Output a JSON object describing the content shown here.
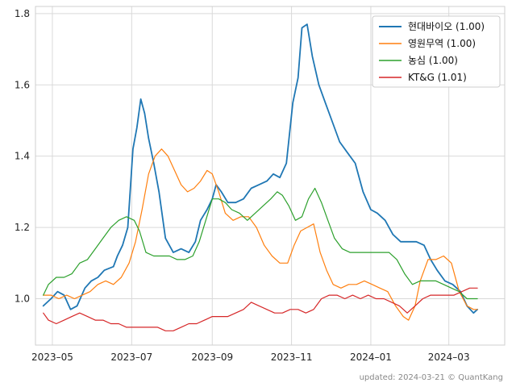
{
  "chart_data": {
    "type": "line",
    "title": "",
    "xlabel": "",
    "ylabel": "",
    "ylim": [
      0.87,
      1.82
    ],
    "xlim": [
      "2023-04-18",
      "2024-04-13"
    ],
    "grid": true,
    "legend_position": "top-right",
    "y_ticks": [
      1.0,
      1.2,
      1.4,
      1.6,
      1.8
    ],
    "y_tick_labels": [
      "1.0",
      "1.2",
      "1.4",
      "1.6",
      "1.8"
    ],
    "x_ticks": [
      "2023-05-01",
      "2023-07-01",
      "2023-09-01",
      "2023-11-01",
      "2024-01-01",
      "2024-03-01"
    ],
    "x_tick_labels": [
      "2023–05",
      "2023–07",
      "2023–09",
      "2023–11",
      "2024–01",
      "2024–03"
    ],
    "footer": "updated: 2024-03-21 © QuantKang",
    "series": [
      {
        "name": "현대바이오",
        "legend_label": "현대바이오 (1.00)",
        "color": "#1f77b4",
        "width": 1.8,
        "points": [
          [
            "2023-04-24",
            0.98
          ],
          [
            "2023-04-30",
            1.0
          ],
          [
            "2023-05-05",
            1.02
          ],
          [
            "2023-05-10",
            1.01
          ],
          [
            "2023-05-15",
            0.97
          ],
          [
            "2023-05-20",
            0.98
          ],
          [
            "2023-05-26",
            1.03
          ],
          [
            "2023-05-31",
            1.05
          ],
          [
            "2023-06-05",
            1.06
          ],
          [
            "2023-06-10",
            1.08
          ],
          [
            "2023-06-17",
            1.09
          ],
          [
            "2023-06-20",
            1.12
          ],
          [
            "2023-06-24",
            1.15
          ],
          [
            "2023-06-28",
            1.2
          ],
          [
            "2023-07-02",
            1.42
          ],
          [
            "2023-07-05",
            1.48
          ],
          [
            "2023-07-08",
            1.56
          ],
          [
            "2023-07-11",
            1.52
          ],
          [
            "2023-07-14",
            1.45
          ],
          [
            "2023-07-18",
            1.38
          ],
          [
            "2023-07-22",
            1.3
          ],
          [
            "2023-07-27",
            1.17
          ],
          [
            "2023-08-02",
            1.13
          ],
          [
            "2023-08-08",
            1.14
          ],
          [
            "2023-08-14",
            1.13
          ],
          [
            "2023-08-19",
            1.16
          ],
          [
            "2023-08-23",
            1.22
          ],
          [
            "2023-08-28",
            1.25
          ],
          [
            "2023-09-01",
            1.28
          ],
          [
            "2023-09-04",
            1.32
          ],
          [
            "2023-09-08",
            1.3
          ],
          [
            "2023-09-13",
            1.27
          ],
          [
            "2023-09-19",
            1.27
          ],
          [
            "2023-09-25",
            1.28
          ],
          [
            "2023-10-01",
            1.31
          ],
          [
            "2023-10-07",
            1.32
          ],
          [
            "2023-10-13",
            1.33
          ],
          [
            "2023-10-18",
            1.35
          ],
          [
            "2023-10-23",
            1.34
          ],
          [
            "2023-10-28",
            1.38
          ],
          [
            "2023-11-02",
            1.55
          ],
          [
            "2023-11-06",
            1.62
          ],
          [
            "2023-11-09",
            1.76
          ],
          [
            "2023-11-13",
            1.77
          ],
          [
            "2023-11-17",
            1.68
          ],
          [
            "2023-11-22",
            1.6
          ],
          [
            "2023-11-27",
            1.55
          ],
          [
            "2023-12-02",
            1.5
          ],
          [
            "2023-12-08",
            1.44
          ],
          [
            "2023-12-14",
            1.41
          ],
          [
            "2023-12-20",
            1.38
          ],
          [
            "2023-12-26",
            1.3
          ],
          [
            "2024-01-01",
            1.25
          ],
          [
            "2024-01-06",
            1.24
          ],
          [
            "2024-01-12",
            1.22
          ],
          [
            "2024-01-18",
            1.18
          ],
          [
            "2024-01-24",
            1.16
          ],
          [
            "2024-01-30",
            1.16
          ],
          [
            "2024-02-05",
            1.16
          ],
          [
            "2024-02-11",
            1.15
          ],
          [
            "2024-02-16",
            1.11
          ],
          [
            "2024-02-21",
            1.08
          ],
          [
            "2024-02-27",
            1.05
          ],
          [
            "2024-03-04",
            1.04
          ],
          [
            "2024-03-10",
            1.02
          ],
          [
            "2024-03-15",
            0.98
          ],
          [
            "2024-03-20",
            0.96
          ],
          [
            "2024-03-23",
            0.97
          ]
        ]
      },
      {
        "name": "영원무역",
        "legend_label": "영원무역 (1.00)",
        "color": "#ff7f0e",
        "width": 1.2,
        "points": [
          [
            "2023-04-24",
            1.01
          ],
          [
            "2023-04-30",
            1.01
          ],
          [
            "2023-05-06",
            1.0
          ],
          [
            "2023-05-12",
            1.01
          ],
          [
            "2023-05-18",
            1.0
          ],
          [
            "2023-05-24",
            1.01
          ],
          [
            "2023-05-30",
            1.02
          ],
          [
            "2023-06-05",
            1.04
          ],
          [
            "2023-06-11",
            1.05
          ],
          [
            "2023-06-17",
            1.04
          ],
          [
            "2023-06-23",
            1.06
          ],
          [
            "2023-06-29",
            1.1
          ],
          [
            "2023-07-04",
            1.16
          ],
          [
            "2023-07-09",
            1.25
          ],
          [
            "2023-07-14",
            1.35
          ],
          [
            "2023-07-19",
            1.4
          ],
          [
            "2023-07-24",
            1.42
          ],
          [
            "2023-07-29",
            1.4
          ],
          [
            "2023-08-03",
            1.36
          ],
          [
            "2023-08-08",
            1.32
          ],
          [
            "2023-08-13",
            1.3
          ],
          [
            "2023-08-18",
            1.31
          ],
          [
            "2023-08-23",
            1.33
          ],
          [
            "2023-08-28",
            1.36
          ],
          [
            "2023-09-01",
            1.35
          ],
          [
            "2023-09-06",
            1.3
          ],
          [
            "2023-09-11",
            1.24
          ],
          [
            "2023-09-17",
            1.22
          ],
          [
            "2023-09-23",
            1.23
          ],
          [
            "2023-09-29",
            1.23
          ],
          [
            "2023-10-05",
            1.2
          ],
          [
            "2023-10-11",
            1.15
          ],
          [
            "2023-10-17",
            1.12
          ],
          [
            "2023-10-23",
            1.1
          ],
          [
            "2023-10-29",
            1.1
          ],
          [
            "2023-11-03",
            1.15
          ],
          [
            "2023-11-08",
            1.19
          ],
          [
            "2023-11-13",
            1.2
          ],
          [
            "2023-11-18",
            1.21
          ],
          [
            "2023-11-23",
            1.13
          ],
          [
            "2023-11-28",
            1.08
          ],
          [
            "2023-12-03",
            1.04
          ],
          [
            "2023-12-09",
            1.03
          ],
          [
            "2023-12-15",
            1.04
          ],
          [
            "2023-12-21",
            1.04
          ],
          [
            "2023-12-27",
            1.05
          ],
          [
            "2024-01-02",
            1.04
          ],
          [
            "2024-01-08",
            1.03
          ],
          [
            "2024-01-14",
            1.02
          ],
          [
            "2024-01-20",
            0.98
          ],
          [
            "2024-01-26",
            0.95
          ],
          [
            "2024-01-30",
            0.94
          ],
          [
            "2024-02-04",
            0.98
          ],
          [
            "2024-02-08",
            1.05
          ],
          [
            "2024-02-14",
            1.11
          ],
          [
            "2024-02-20",
            1.11
          ],
          [
            "2024-02-26",
            1.12
          ],
          [
            "2024-03-03",
            1.1
          ],
          [
            "2024-03-09",
            1.02
          ],
          [
            "2024-03-15",
            0.98
          ],
          [
            "2024-03-20",
            0.97
          ],
          [
            "2024-03-23",
            0.97
          ]
        ]
      },
      {
        "name": "농심",
        "legend_label": "농심 (1.00)",
        "color": "#2ca02c",
        "width": 1.2,
        "points": [
          [
            "2023-04-24",
            1.01
          ],
          [
            "2023-04-28",
            1.04
          ],
          [
            "2023-05-04",
            1.06
          ],
          [
            "2023-05-10",
            1.06
          ],
          [
            "2023-05-16",
            1.07
          ],
          [
            "2023-05-22",
            1.1
          ],
          [
            "2023-05-28",
            1.11
          ],
          [
            "2023-06-03",
            1.14
          ],
          [
            "2023-06-09",
            1.17
          ],
          [
            "2023-06-15",
            1.2
          ],
          [
            "2023-06-21",
            1.22
          ],
          [
            "2023-06-27",
            1.23
          ],
          [
            "2023-07-03",
            1.22
          ],
          [
            "2023-07-07",
            1.19
          ],
          [
            "2023-07-12",
            1.13
          ],
          [
            "2023-07-18",
            1.12
          ],
          [
            "2023-07-24",
            1.12
          ],
          [
            "2023-07-30",
            1.12
          ],
          [
            "2023-08-05",
            1.11
          ],
          [
            "2023-08-11",
            1.11
          ],
          [
            "2023-08-17",
            1.12
          ],
          [
            "2023-08-22",
            1.16
          ],
          [
            "2023-08-27",
            1.22
          ],
          [
            "2023-09-01",
            1.28
          ],
          [
            "2023-09-06",
            1.28
          ],
          [
            "2023-09-11",
            1.27
          ],
          [
            "2023-09-16",
            1.25
          ],
          [
            "2023-09-22",
            1.24
          ],
          [
            "2023-09-28",
            1.22
          ],
          [
            "2023-10-04",
            1.24
          ],
          [
            "2023-10-10",
            1.26
          ],
          [
            "2023-10-16",
            1.28
          ],
          [
            "2023-10-21",
            1.3
          ],
          [
            "2023-10-25",
            1.29
          ],
          [
            "2023-10-30",
            1.26
          ],
          [
            "2023-11-04",
            1.22
          ],
          [
            "2023-11-09",
            1.23
          ],
          [
            "2023-11-14",
            1.28
          ],
          [
            "2023-11-19",
            1.31
          ],
          [
            "2023-11-24",
            1.27
          ],
          [
            "2023-11-29",
            1.22
          ],
          [
            "2023-12-04",
            1.17
          ],
          [
            "2023-12-10",
            1.14
          ],
          [
            "2023-12-16",
            1.13
          ],
          [
            "2023-12-22",
            1.13
          ],
          [
            "2023-12-28",
            1.13
          ],
          [
            "2024-01-03",
            1.13
          ],
          [
            "2024-01-09",
            1.13
          ],
          [
            "2024-01-15",
            1.13
          ],
          [
            "2024-01-21",
            1.11
          ],
          [
            "2024-01-27",
            1.07
          ],
          [
            "2024-02-02",
            1.04
          ],
          [
            "2024-02-08",
            1.05
          ],
          [
            "2024-02-14",
            1.05
          ],
          [
            "2024-02-20",
            1.05
          ],
          [
            "2024-02-26",
            1.04
          ],
          [
            "2024-03-03",
            1.03
          ],
          [
            "2024-03-09",
            1.02
          ],
          [
            "2024-03-15",
            1.0
          ],
          [
            "2024-03-20",
            1.0
          ],
          [
            "2024-03-23",
            1.0
          ]
        ]
      },
      {
        "name": "KT&G",
        "legend_label": "KT&G (1.01)",
        "color": "#d62728",
        "width": 1.2,
        "points": [
          [
            "2023-04-24",
            0.96
          ],
          [
            "2023-04-28",
            0.94
          ],
          [
            "2023-05-04",
            0.93
          ],
          [
            "2023-05-10",
            0.94
          ],
          [
            "2023-05-16",
            0.95
          ],
          [
            "2023-05-22",
            0.96
          ],
          [
            "2023-05-28",
            0.95
          ],
          [
            "2023-06-03",
            0.94
          ],
          [
            "2023-06-09",
            0.94
          ],
          [
            "2023-06-15",
            0.93
          ],
          [
            "2023-06-21",
            0.93
          ],
          [
            "2023-06-27",
            0.92
          ],
          [
            "2023-07-03",
            0.92
          ],
          [
            "2023-07-09",
            0.92
          ],
          [
            "2023-07-15",
            0.92
          ],
          [
            "2023-07-21",
            0.92
          ],
          [
            "2023-07-27",
            0.91
          ],
          [
            "2023-08-02",
            0.91
          ],
          [
            "2023-08-08",
            0.92
          ],
          [
            "2023-08-14",
            0.93
          ],
          [
            "2023-08-20",
            0.93
          ],
          [
            "2023-08-26",
            0.94
          ],
          [
            "2023-09-01",
            0.95
          ],
          [
            "2023-09-07",
            0.95
          ],
          [
            "2023-09-13",
            0.95
          ],
          [
            "2023-09-19",
            0.96
          ],
          [
            "2023-09-25",
            0.97
          ],
          [
            "2023-10-01",
            0.99
          ],
          [
            "2023-10-07",
            0.98
          ],
          [
            "2023-10-13",
            0.97
          ],
          [
            "2023-10-19",
            0.96
          ],
          [
            "2023-10-25",
            0.96
          ],
          [
            "2023-10-31",
            0.97
          ],
          [
            "2023-11-06",
            0.97
          ],
          [
            "2023-11-12",
            0.96
          ],
          [
            "2023-11-18",
            0.97
          ],
          [
            "2023-11-24",
            1.0
          ],
          [
            "2023-11-30",
            1.01
          ],
          [
            "2023-12-06",
            1.01
          ],
          [
            "2023-12-12",
            1.0
          ],
          [
            "2023-12-18",
            1.01
          ],
          [
            "2023-12-24",
            1.0
          ],
          [
            "2023-12-30",
            1.01
          ],
          [
            "2024-01-05",
            1.0
          ],
          [
            "2024-01-11",
            1.0
          ],
          [
            "2024-01-17",
            0.99
          ],
          [
            "2024-01-23",
            0.98
          ],
          [
            "2024-01-29",
            0.96
          ],
          [
            "2024-02-04",
            0.98
          ],
          [
            "2024-02-10",
            1.0
          ],
          [
            "2024-02-16",
            1.01
          ],
          [
            "2024-02-22",
            1.01
          ],
          [
            "2024-02-28",
            1.01
          ],
          [
            "2024-03-05",
            1.01
          ],
          [
            "2024-03-11",
            1.02
          ],
          [
            "2024-03-17",
            1.03
          ],
          [
            "2024-03-23",
            1.03
          ]
        ]
      }
    ]
  }
}
